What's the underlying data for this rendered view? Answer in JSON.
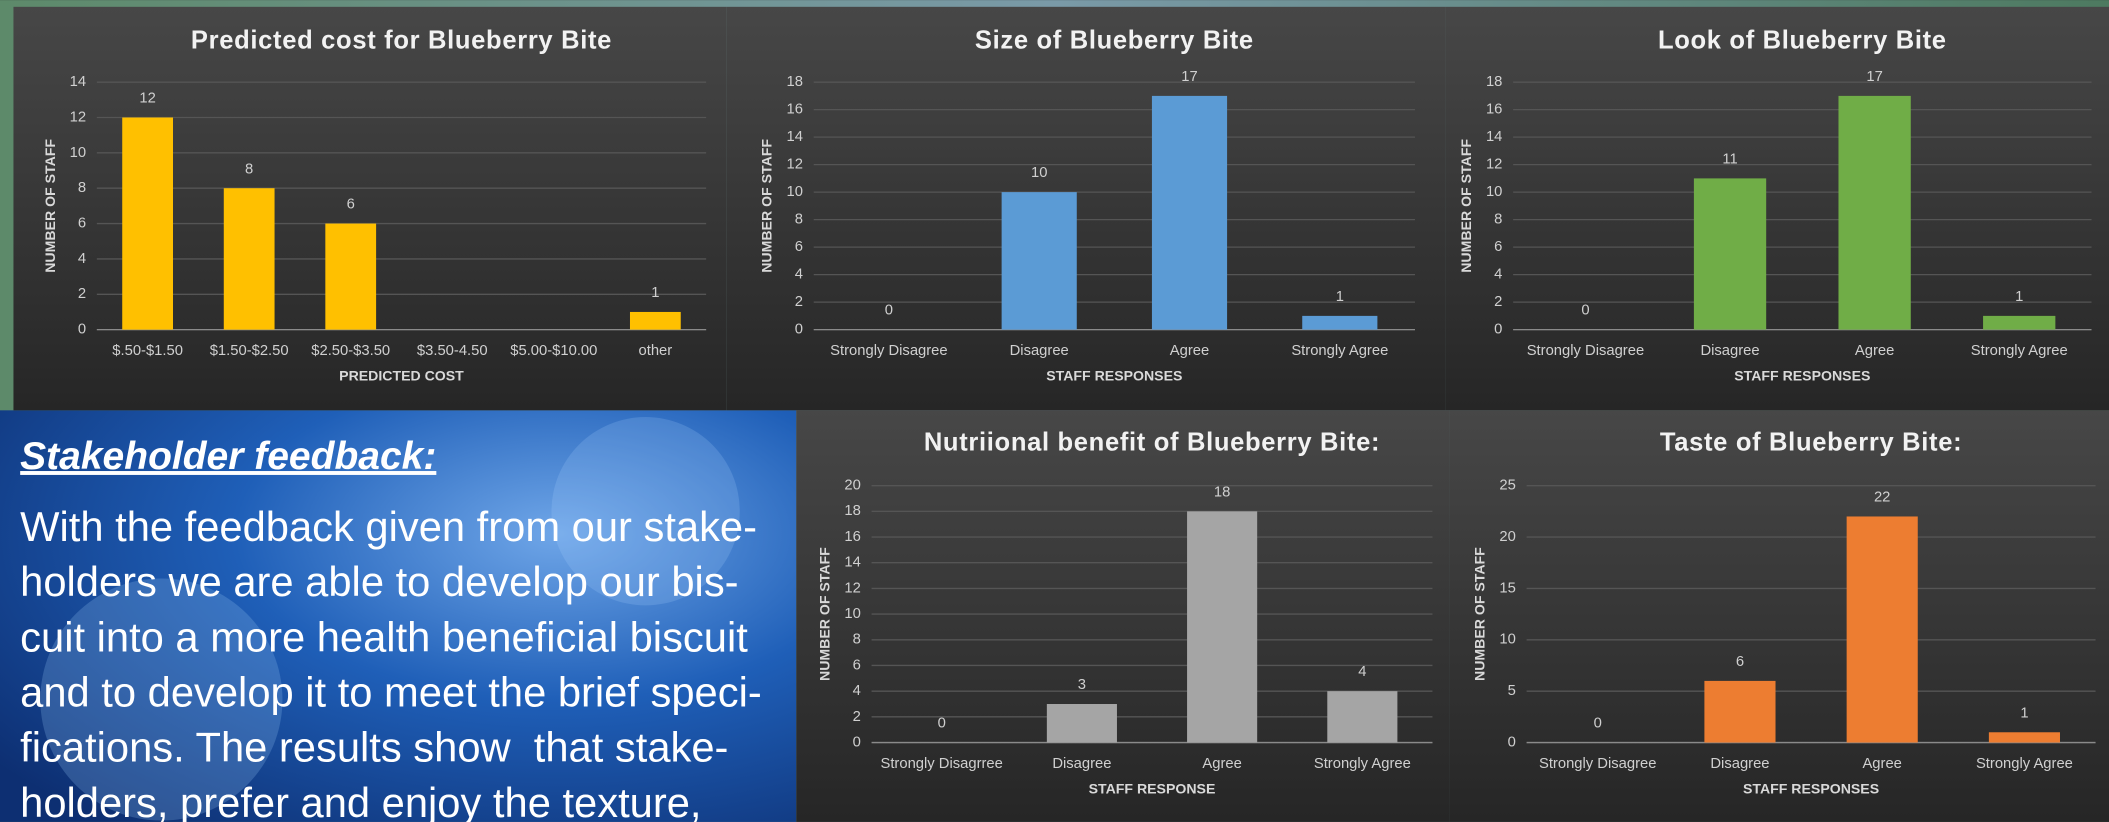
{
  "chart_data": [
    {
      "type": "bar",
      "title": "Predicted cost for Blueberry Bite",
      "categories": [
        "$.50-$1.50",
        "$1.50-$2.50",
        "$2.50-$3.50",
        "$3.50-4.50",
        "$5.00-$10.00",
        "other"
      ],
      "values": [
        12,
        8,
        6,
        null,
        null,
        1
      ],
      "color": "#ffc000",
      "x_label": "PREDICTED COST",
      "y_label": "NUMBER OF STAFF",
      "ylim": [
        0,
        14
      ],
      "yticks": [
        0,
        2,
        4,
        6,
        8,
        10,
        12,
        14
      ],
      "grid": true
    },
    {
      "type": "bar",
      "title": "Size of Blueberry Bite",
      "categories": [
        "Strongly Disagree",
        "Disagree",
        "Agree",
        "Strongly Agree"
      ],
      "values": [
        0,
        10,
        17,
        1
      ],
      "color": "#5b9bd5",
      "x_label": "STAFF RESPONSES",
      "y_label": "NUMBER OF STAFF",
      "ylim": [
        0,
        18
      ],
      "yticks": [
        0,
        2,
        4,
        6,
        8,
        10,
        12,
        14,
        16,
        18
      ],
      "grid": true
    },
    {
      "type": "bar",
      "title": "Look of Blueberry Bite",
      "categories": [
        "Strongly Disagree",
        "Disagree",
        "Agree",
        "Strongly Agree"
      ],
      "values": [
        0,
        11,
        17,
        1
      ],
      "color": "#70ad47",
      "x_label": "STAFF RESPONSES",
      "y_label": "NUMBER OF STAFF",
      "ylim": [
        0,
        18
      ],
      "yticks": [
        0,
        2,
        4,
        6,
        8,
        10,
        12,
        14,
        16,
        18
      ],
      "grid": true
    },
    {
      "type": "bar",
      "title": "Nutriional benefit of Blueberry Bite:",
      "categories": [
        "Strongly Disagrree",
        "Disagree",
        "Agree",
        "Strongly Agree"
      ],
      "values": [
        0,
        3,
        18,
        4
      ],
      "color": "#a5a5a5",
      "x_label": "STAFF RESPONSE",
      "y_label": "NUMBER OF STAFF",
      "ylim": [
        0,
        20
      ],
      "yticks": [
        0,
        2,
        4,
        6,
        8,
        10,
        12,
        14,
        16,
        18,
        20
      ],
      "grid": true
    },
    {
      "type": "bar",
      "title": "Taste of Blueberry Bite:",
      "categories": [
        "Strongly Disagree",
        "Disagree",
        "Agree",
        "Strongly Agree"
      ],
      "values": [
        0,
        6,
        22,
        1
      ],
      "color": "#ed7d31",
      "x_label": "STAFF RESPONSES",
      "y_label": "NUMBER OF STAFF",
      "ylim": [
        0,
        25
      ],
      "yticks": [
        0,
        5,
        10,
        15,
        20,
        25
      ],
      "grid": true
    }
  ],
  "text_panel": {
    "heading": "Stakeholder feedback:",
    "lines": [
      "With the feedback given from our stake-",
      "holders we are able to develop our bis-",
      "cuit into a more health beneficial biscuit",
      "and to develop it to meet the brief speci-",
      "fications. The results show  that stake-",
      "holders, prefer and enjoy the texture,"
    ]
  }
}
